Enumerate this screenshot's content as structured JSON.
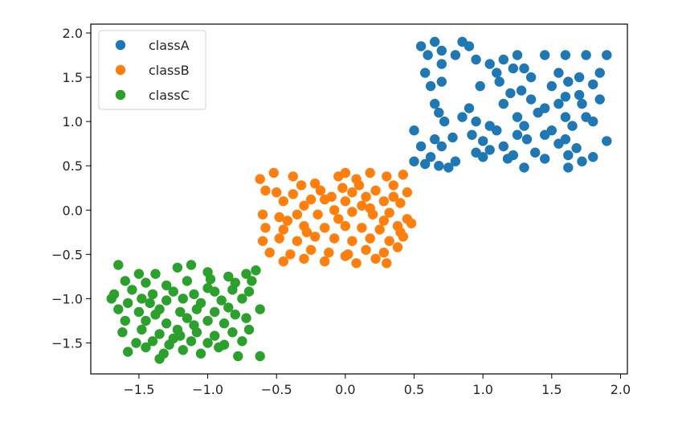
{
  "chart_data": {
    "type": "scatter",
    "title": "",
    "xlabel": "",
    "ylabel": "",
    "xlim": [
      -1.85,
      2.05
    ],
    "ylim": [
      -1.85,
      2.1
    ],
    "x_ticks": [
      -1.5,
      -1.0,
      -0.5,
      0.0,
      0.5,
      1.0,
      1.5,
      2.0
    ],
    "x_tick_labels": [
      "−1.5",
      "−1.0",
      "−0.5",
      "0.0",
      "0.5",
      "1.0",
      "1.5",
      "2.0"
    ],
    "y_ticks": [
      2.0,
      1.5,
      1.0,
      0.5,
      0.0,
      -0.5,
      -1.0,
      -1.5
    ],
    "y_tick_labels": [
      "2.0",
      "1.5",
      "1.0",
      "0.5",
      "0.0",
      "−0.5",
      "−1.0",
      "−1.5"
    ],
    "grid": false,
    "legend_position": "upper-left",
    "series": [
      {
        "name": "classA",
        "color": "#1f77b4",
        "points": [
          [
            0.55,
            1.85
          ],
          [
            0.6,
            1.75
          ],
          [
            0.65,
            1.9
          ],
          [
            0.7,
            1.8
          ],
          [
            0.85,
            1.9
          ],
          [
            0.9,
            1.85
          ],
          [
            0.95,
            1.7
          ],
          [
            1.05,
            1.65
          ],
          [
            1.15,
            1.7
          ],
          [
            1.25,
            1.75
          ],
          [
            1.3,
            1.6
          ],
          [
            1.45,
            1.75
          ],
          [
            1.6,
            1.75
          ],
          [
            1.75,
            1.75
          ],
          [
            1.9,
            1.75
          ],
          [
            0.58,
            1.55
          ],
          [
            0.7,
            1.65
          ],
          [
            0.8,
            1.75
          ],
          [
            1.1,
            1.55
          ],
          [
            1.22,
            1.6
          ],
          [
            1.35,
            1.5
          ],
          [
            1.55,
            1.55
          ],
          [
            1.7,
            1.5
          ],
          [
            1.85,
            1.55
          ],
          [
            0.62,
            1.4
          ],
          [
            0.7,
            1.45
          ],
          [
            0.98,
            1.4
          ],
          [
            1.12,
            1.45
          ],
          [
            1.28,
            1.35
          ],
          [
            1.5,
            1.4
          ],
          [
            1.62,
            1.45
          ],
          [
            1.8,
            1.42
          ],
          [
            1.2,
            1.32
          ],
          [
            1.35,
            1.25
          ],
          [
            1.6,
            1.28
          ],
          [
            1.72,
            1.2
          ],
          [
            0.65,
            1.2
          ],
          [
            0.9,
            1.15
          ],
          [
            1.15,
            1.2
          ],
          [
            1.45,
            1.15
          ],
          [
            1.55,
            1.2
          ],
          [
            1.7,
            1.3
          ],
          [
            1.85,
            1.25
          ],
          [
            0.68,
            1.1
          ],
          [
            0.85,
            1.05
          ],
          [
            1.25,
            1.05
          ],
          [
            1.4,
            1.1
          ],
          [
            1.6,
            1.05
          ],
          [
            1.8,
            1.0
          ],
          [
            0.95,
            1.0
          ],
          [
            1.05,
            0.95
          ],
          [
            1.3,
            0.95
          ],
          [
            1.5,
            0.9
          ],
          [
            1.65,
            0.95
          ],
          [
            1.75,
            1.05
          ],
          [
            0.92,
            0.85
          ],
          [
            1.1,
            0.9
          ],
          [
            1.25,
            0.85
          ],
          [
            1.45,
            0.85
          ],
          [
            1.6,
            0.8
          ],
          [
            0.65,
            0.8
          ],
          [
            0.78,
            0.82
          ],
          [
            1.0,
            0.78
          ],
          [
            1.15,
            0.72
          ],
          [
            1.32,
            0.8
          ],
          [
            1.55,
            0.75
          ],
          [
            1.68,
            0.7
          ],
          [
            1.9,
            0.78
          ],
          [
            0.55,
            0.72
          ],
          [
            0.7,
            0.72
          ],
          [
            0.95,
            0.65
          ],
          [
            1.05,
            0.68
          ],
          [
            1.22,
            0.62
          ],
          [
            1.38,
            0.65
          ],
          [
            1.62,
            0.62
          ],
          [
            1.8,
            0.6
          ],
          [
            0.62,
            0.6
          ],
          [
            0.8,
            0.55
          ],
          [
            1.0,
            0.6
          ],
          [
            1.18,
            0.58
          ],
          [
            1.45,
            0.58
          ],
          [
            0.5,
            0.55
          ],
          [
            0.58,
            0.52
          ],
          [
            0.68,
            0.5
          ],
          [
            0.75,
            0.48
          ],
          [
            1.3,
            0.48
          ],
          [
            1.62,
            0.48
          ],
          [
            1.72,
            0.55
          ],
          [
            0.5,
            0.9
          ],
          [
            0.72,
            1.0
          ]
        ]
      },
      {
        "name": "classB",
        "color": "#ff7f0e",
        "points": [
          [
            -0.62,
            0.35
          ],
          [
            -0.52,
            0.42
          ],
          [
            -0.38,
            0.38
          ],
          [
            -0.22,
            0.3
          ],
          [
            -0.05,
            0.38
          ],
          [
            0.0,
            0.42
          ],
          [
            0.08,
            0.35
          ],
          [
            0.18,
            0.42
          ],
          [
            0.3,
            0.38
          ],
          [
            0.42,
            0.4
          ],
          [
            -0.58,
            0.22
          ],
          [
            -0.5,
            0.2
          ],
          [
            -0.32,
            0.28
          ],
          [
            -0.18,
            0.22
          ],
          [
            -0.02,
            0.25
          ],
          [
            0.1,
            0.28
          ],
          [
            0.22,
            0.22
          ],
          [
            0.35,
            0.28
          ],
          [
            0.45,
            0.2
          ],
          [
            -0.45,
            0.1
          ],
          [
            -0.3,
            0.05
          ],
          [
            -0.15,
            0.12
          ],
          [
            0.0,
            0.1
          ],
          [
            0.15,
            0.15
          ],
          [
            0.28,
            0.1
          ],
          [
            0.4,
            0.08
          ],
          [
            -0.6,
            -0.05
          ],
          [
            -0.48,
            -0.08
          ],
          [
            -0.35,
            -0.05
          ],
          [
            -0.2,
            -0.05
          ],
          [
            -0.08,
            0.0
          ],
          [
            0.05,
            -0.02
          ],
          [
            0.2,
            -0.05
          ],
          [
            0.32,
            -0.03
          ],
          [
            0.45,
            -0.1
          ],
          [
            -0.58,
            -0.2
          ],
          [
            -0.45,
            -0.22
          ],
          [
            -0.3,
            -0.18
          ],
          [
            -0.15,
            -0.2
          ],
          [
            0.0,
            -0.18
          ],
          [
            0.12,
            -0.2
          ],
          [
            0.25,
            -0.22
          ],
          [
            0.38,
            -0.18
          ],
          [
            0.48,
            -0.15
          ],
          [
            -0.6,
            -0.35
          ],
          [
            -0.48,
            -0.32
          ],
          [
            -0.35,
            -0.35
          ],
          [
            -0.22,
            -0.3
          ],
          [
            -0.08,
            -0.32
          ],
          [
            0.05,
            -0.35
          ],
          [
            0.18,
            -0.32
          ],
          [
            0.32,
            -0.35
          ],
          [
            0.42,
            -0.3
          ],
          [
            -0.55,
            -0.48
          ],
          [
            -0.4,
            -0.5
          ],
          [
            -0.25,
            -0.45
          ],
          [
            -0.12,
            -0.48
          ],
          [
            0.02,
            -0.5
          ],
          [
            0.15,
            -0.45
          ],
          [
            0.28,
            -0.48
          ],
          [
            0.38,
            -0.42
          ],
          [
            -0.45,
            -0.58
          ],
          [
            -0.3,
            -0.55
          ],
          [
            -0.15,
            -0.58
          ],
          [
            0.0,
            -0.52
          ],
          [
            0.08,
            -0.6
          ],
          [
            0.22,
            -0.55
          ],
          [
            0.3,
            -0.6
          ],
          [
            -0.38,
            0.18
          ],
          [
            -0.25,
            0.12
          ],
          [
            -0.1,
            0.15
          ],
          [
            0.05,
            0.2
          ],
          [
            0.12,
            0.05
          ],
          [
            0.28,
            -0.12
          ],
          [
            0.4,
            -0.25
          ],
          [
            -0.42,
            -0.12
          ],
          [
            -0.28,
            -0.25
          ],
          [
            -0.05,
            -0.1
          ],
          [
            0.18,
            0.02
          ],
          [
            0.35,
            0.15
          ]
        ]
      },
      {
        "name": "classC",
        "color": "#2ca02c",
        "points": [
          [
            -1.65,
            -0.62
          ],
          [
            -1.5,
            -0.72
          ],
          [
            -1.38,
            -0.72
          ],
          [
            -1.22,
            -0.65
          ],
          [
            -1.12,
            -0.62
          ],
          [
            -1.0,
            -0.7
          ],
          [
            -0.85,
            -0.75
          ],
          [
            -0.72,
            -0.72
          ],
          [
            -0.65,
            -0.68
          ],
          [
            -1.6,
            -0.8
          ],
          [
            -1.45,
            -0.82
          ],
          [
            -1.3,
            -0.85
          ],
          [
            -1.15,
            -0.8
          ],
          [
            -0.98,
            -0.78
          ],
          [
            -0.8,
            -0.82
          ],
          [
            -0.68,
            -0.8
          ],
          [
            -1.68,
            -0.95
          ],
          [
            -1.55,
            -0.9
          ],
          [
            -1.4,
            -0.95
          ],
          [
            -1.25,
            -0.92
          ],
          [
            -1.1,
            -0.95
          ],
          [
            -0.95,
            -0.92
          ],
          [
            -0.82,
            -0.9
          ],
          [
            -0.7,
            -0.92
          ],
          [
            -1.7,
            -1.0
          ],
          [
            -1.58,
            -1.05
          ],
          [
            -1.42,
            -1.05
          ],
          [
            -1.3,
            -1.02
          ],
          [
            -1.18,
            -1.0
          ],
          [
            -1.05,
            -1.05
          ],
          [
            -0.9,
            -1.02
          ],
          [
            -0.75,
            -1.0
          ],
          [
            -1.65,
            -1.12
          ],
          [
            -1.5,
            -1.15
          ],
          [
            -1.35,
            -1.12
          ],
          [
            -1.2,
            -1.15
          ],
          [
            -1.08,
            -1.12
          ],
          [
            -0.95,
            -1.15
          ],
          [
            -0.8,
            -1.18
          ],
          [
            -0.62,
            -1.12
          ],
          [
            -1.6,
            -1.25
          ],
          [
            -1.45,
            -1.25
          ],
          [
            -1.3,
            -1.28
          ],
          [
            -1.15,
            -1.22
          ],
          [
            -1.0,
            -1.25
          ],
          [
            -0.88,
            -1.28
          ],
          [
            -0.72,
            -1.22
          ],
          [
            -1.62,
            -1.38
          ],
          [
            -1.48,
            -1.35
          ],
          [
            -1.35,
            -1.4
          ],
          [
            -1.22,
            -1.35
          ],
          [
            -1.08,
            -1.38
          ],
          [
            -0.95,
            -1.42
          ],
          [
            -0.82,
            -1.38
          ],
          [
            -0.7,
            -1.35
          ],
          [
            -1.52,
            -1.5
          ],
          [
            -1.4,
            -1.48
          ],
          [
            -1.28,
            -1.52
          ],
          [
            -1.12,
            -1.48
          ],
          [
            -1.0,
            -1.5
          ],
          [
            -0.88,
            -1.52
          ],
          [
            -0.75,
            -1.48
          ],
          [
            -1.58,
            -1.6
          ],
          [
            -1.45,
            -1.55
          ],
          [
            -1.32,
            -1.62
          ],
          [
            -1.18,
            -1.58
          ],
          [
            -1.05,
            -1.62
          ],
          [
            -0.92,
            -1.55
          ],
          [
            -0.78,
            -1.65
          ],
          [
            -0.62,
            -1.65
          ],
          [
            -1.35,
            -1.68
          ],
          [
            -1.25,
            -1.45
          ],
          [
            -1.1,
            -1.3
          ],
          [
            -1.38,
            -1.18
          ],
          [
            -1.0,
            -0.88
          ],
          [
            -1.2,
            -1.42
          ],
          [
            -0.85,
            -1.1
          ],
          [
            -1.48,
            -1.0
          ]
        ]
      }
    ]
  }
}
